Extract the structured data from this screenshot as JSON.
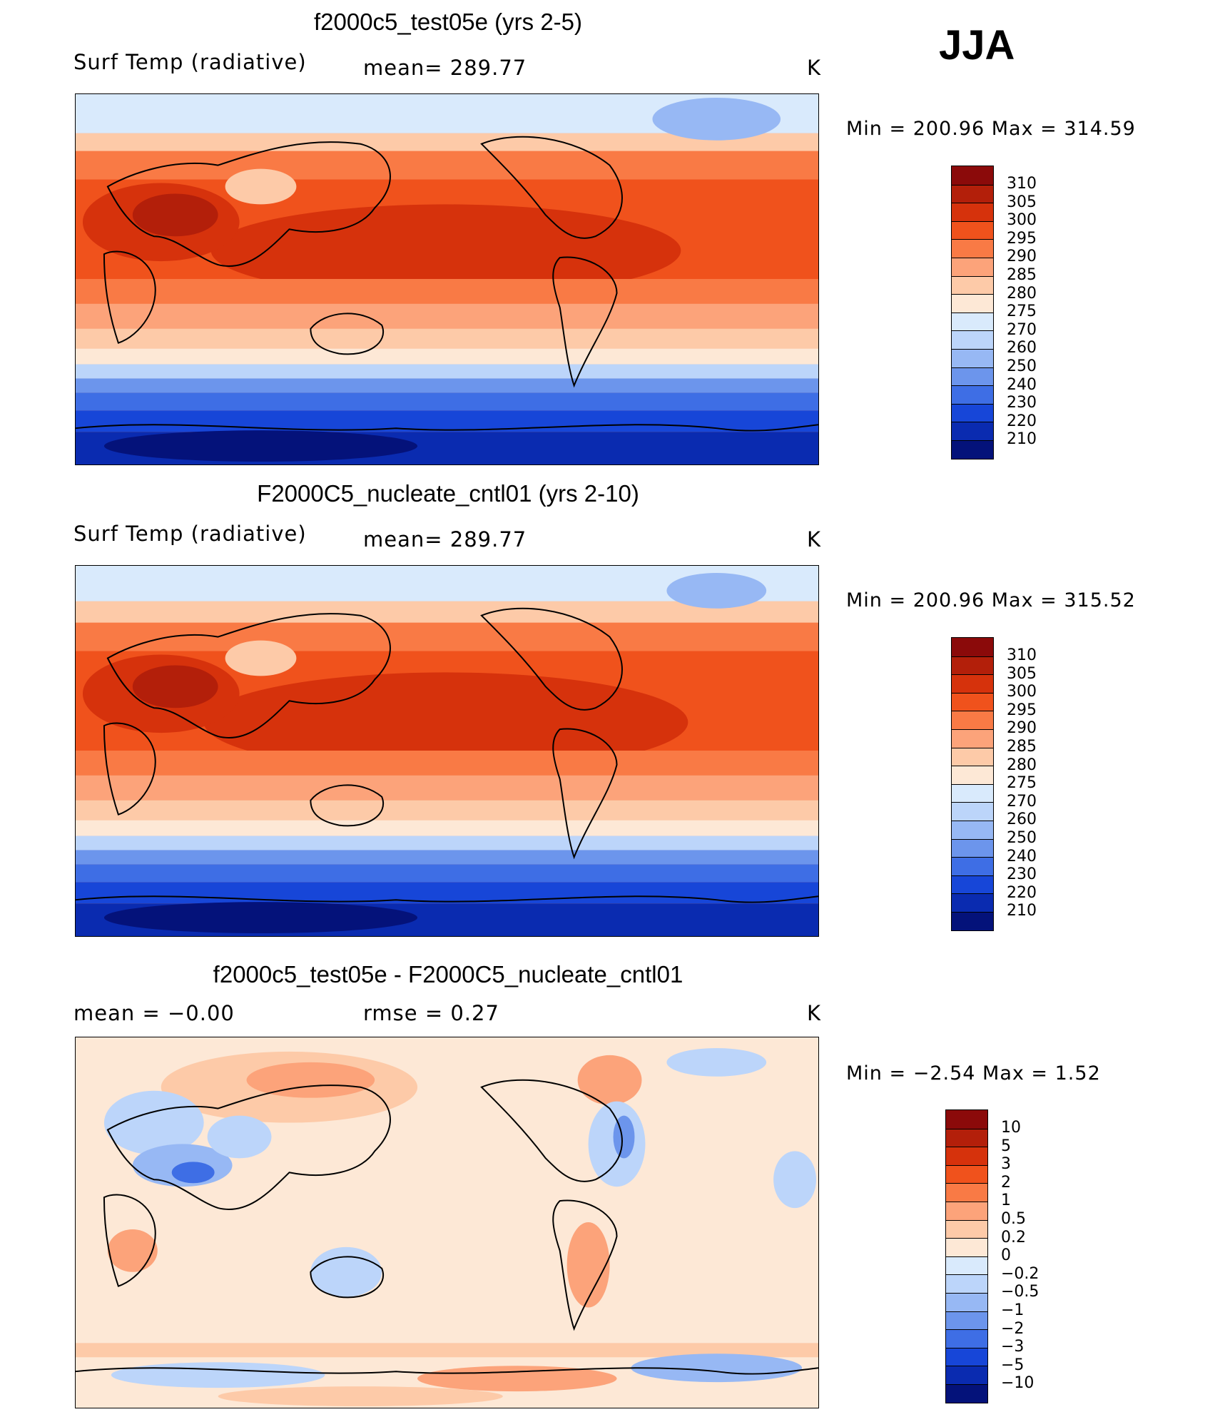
{
  "season": "JJA",
  "panels": [
    {
      "title": "f2000c5_test05e (yrs 2-5)",
      "left_label": "Surf Temp (radiative)",
      "center_label": "mean=  289.77",
      "units": "K",
      "min_label": "Min  =  200.96  Max  =  314.59",
      "levels": [
        "310",
        "305",
        "300",
        "295",
        "290",
        "285",
        "280",
        "275",
        "270",
        "260",
        "250",
        "240",
        "230",
        "220",
        "210"
      ],
      "colors": [
        "#8b0a0a",
        "#b31f0a",
        "#d6320c",
        "#f0521c",
        "#f97a45",
        "#fca37a",
        "#fdcaa8",
        "#fde8d6",
        "#d9eafc",
        "#bcd5fa",
        "#97b8f4",
        "#6c95ec",
        "#3e6ee5",
        "#1746d8",
        "#0a2bb0",
        "#04127a"
      ]
    },
    {
      "title": "F2000C5_nucleate_cntl01 (yrs 2-10)",
      "left_label": "Surf Temp (radiative)",
      "center_label": "mean=  289.77",
      "units": "K",
      "min_label": "Min  =  200.96  Max  =  315.52",
      "levels": [
        "310",
        "305",
        "300",
        "295",
        "290",
        "285",
        "280",
        "275",
        "270",
        "260",
        "250",
        "240",
        "230",
        "220",
        "210"
      ],
      "colors": [
        "#8b0a0a",
        "#b31f0a",
        "#d6320c",
        "#f0521c",
        "#f97a45",
        "#fca37a",
        "#fdcaa8",
        "#fde8d6",
        "#d9eafc",
        "#bcd5fa",
        "#97b8f4",
        "#6c95ec",
        "#3e6ee5",
        "#1746d8",
        "#0a2bb0",
        "#04127a"
      ]
    },
    {
      "title": "f2000c5_test05e - F2000C5_nucleate_cntl01",
      "left_label": "mean  =    −0.00",
      "center_label": "rmse  =     0.27",
      "units": "K",
      "min_label": "Min  =    −2.54  Max  =      1.52",
      "levels": [
        "10",
        "5",
        "3",
        "2",
        "1",
        "0.5",
        "0.2",
        "0",
        "−0.2",
        "−0.5",
        "−1",
        "−2",
        "−3",
        "−5",
        "−10"
      ],
      "colors": [
        "#8b0a0a",
        "#b31f0a",
        "#d6320c",
        "#f0521c",
        "#f97a45",
        "#fca37a",
        "#fdcaa8",
        "#fde8d6",
        "#d9eafc",
        "#bcd5fa",
        "#97b8f4",
        "#6c95ec",
        "#3e6ee5",
        "#1746d8",
        "#0a2bb0",
        "#04127a"
      ]
    }
  ]
}
